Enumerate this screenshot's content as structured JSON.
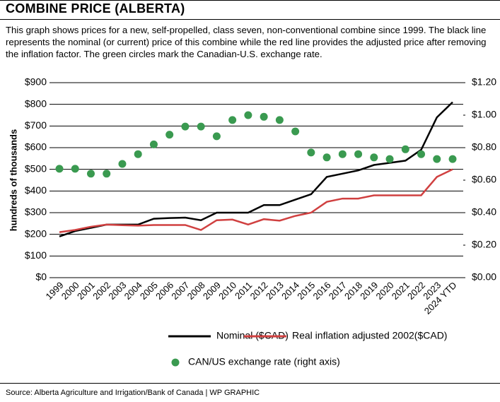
{
  "chart_data": {
    "type": "line",
    "title": "COMBINE PRICE (ALBERTA)",
    "subtitle": "This graph shows prices for a new, self-propelled, class seven, non-conventional combine since 1999. The black line represents the nominal (or current) price of this combine while the red line provides the adjusted price after removing the inflation factor. The green circles mark the Canadian-U.S. exchange rate.",
    "ylabel": "hundreds of thousands",
    "source": "Source:  Alberta Agriculture and Irrigation/Bank of Canada  |  WP GRAPHIC",
    "categories": [
      "1999",
      "2000",
      "2001",
      "2002",
      "2003",
      "2004",
      "2005",
      "2006",
      "2007",
      "2008",
      "2009",
      "2010",
      "2011",
      "2012",
      "2013",
      "2014",
      "2015",
      "2016",
      "2017",
      "2018",
      "2019",
      "2020",
      "2021",
      "2022",
      "2023",
      "2024 YTD"
    ],
    "series": [
      {
        "name": "Nominal ($CAD)",
        "color": "#000000",
        "style": "line",
        "values": [
          190,
          215,
          230,
          245,
          245,
          245,
          272,
          275,
          277,
          265,
          300,
          300,
          300,
          335,
          335,
          360,
          385,
          465,
          480,
          495,
          520,
          530,
          540,
          590,
          740,
          810
        ]
      },
      {
        "name": "Real inflation adjusted 2002($CAD)",
        "color": "#d04040",
        "style": "line",
        "values": [
          210,
          220,
          235,
          245,
          242,
          240,
          243,
          243,
          243,
          220,
          265,
          268,
          245,
          270,
          263,
          285,
          300,
          350,
          365,
          365,
          380,
          380,
          380,
          380,
          465,
          500
        ]
      },
      {
        "name": "CAN/US exchange rate (right axis)",
        "color": "#3a9a50",
        "style": "dots",
        "axis": "y2",
        "values": [
          0.67,
          0.67,
          0.64,
          0.64,
          0.7,
          0.76,
          0.82,
          0.88,
          0.93,
          0.93,
          0.87,
          0.97,
          1.0,
          0.99,
          0.97,
          0.9,
          0.77,
          0.74,
          0.76,
          0.76,
          0.74,
          0.73,
          0.79,
          0.76,
          0.73,
          0.73
        ]
      }
    ],
    "ylim": [
      0,
      900
    ],
    "yticks": [
      {
        "value": 0,
        "label": "$0"
      },
      {
        "value": 100,
        "label": "$100"
      },
      {
        "value": 200,
        "label": "$200"
      },
      {
        "value": 300,
        "label": "$300"
      },
      {
        "value": 400,
        "label": "$400"
      },
      {
        "value": 500,
        "label": "$500"
      },
      {
        "value": 600,
        "label": "$600"
      },
      {
        "value": 700,
        "label": "$700"
      },
      {
        "value": 800,
        "label": "$800"
      },
      {
        "value": 900,
        "label": "$900"
      }
    ],
    "y2lim": [
      0,
      1.2
    ],
    "y2ticks": [
      {
        "value": 0,
        "label": "$0.00"
      },
      {
        "value": 0.2,
        "label": "$0.20"
      },
      {
        "value": 0.4,
        "label": "$0.40"
      },
      {
        "value": 0.6,
        "label": "$0.60"
      },
      {
        "value": 0.8,
        "label": "$0.80"
      },
      {
        "value": 1.0,
        "label": "$1.00"
      },
      {
        "value": 1.2,
        "label": "$1.20"
      }
    ],
    "grid": true
  }
}
